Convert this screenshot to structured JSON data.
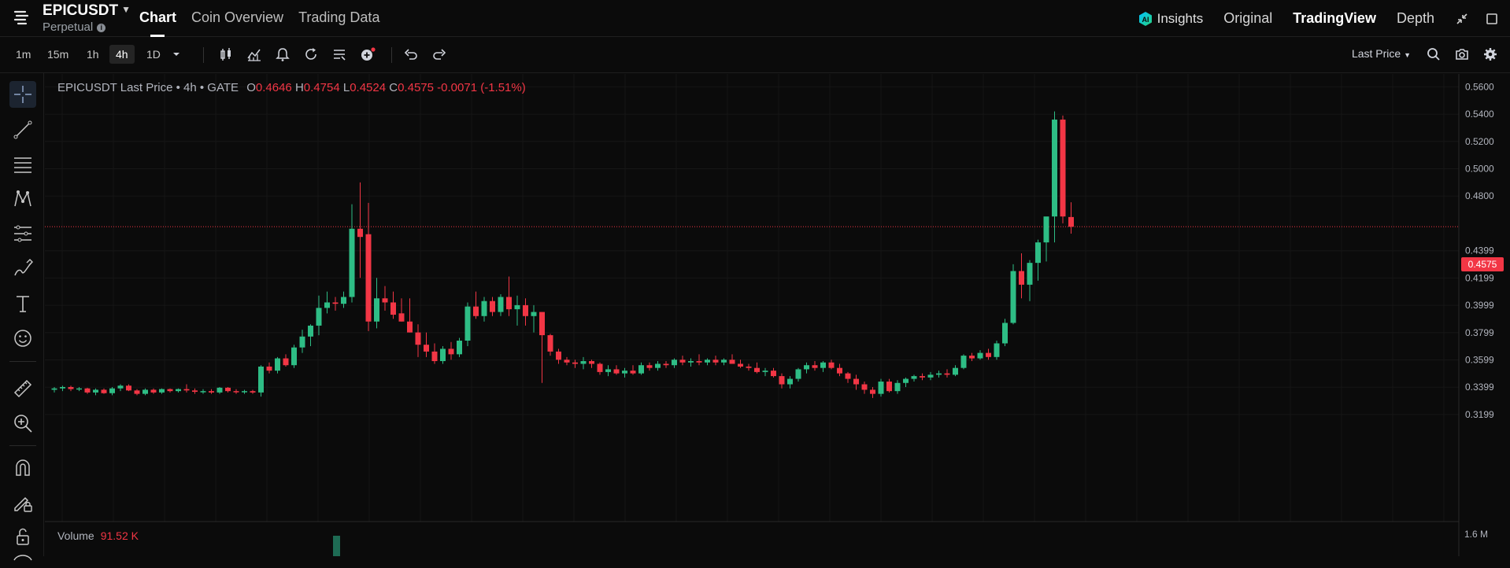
{
  "header": {
    "symbol": "EPICUSDT",
    "contract_type": "Perpetual",
    "tabs": [
      {
        "label": "Chart",
        "active": true
      },
      {
        "label": "Coin Overview",
        "active": false
      },
      {
        "label": "Trading Data",
        "active": false
      }
    ],
    "insights_label": "Insights",
    "views": [
      {
        "label": "Original",
        "active": false
      },
      {
        "label": "TradingView",
        "active": true
      },
      {
        "label": "Depth",
        "active": false
      }
    ]
  },
  "toolbar": {
    "timeframes": [
      {
        "label": "1m",
        "active": false
      },
      {
        "label": "15m",
        "active": false
      },
      {
        "label": "1h",
        "active": false
      },
      {
        "label": "4h",
        "active": true
      },
      {
        "label": "1D",
        "active": false
      }
    ],
    "price_type": "Last Price"
  },
  "legend": {
    "title": "EPICUSDT Last Price • 4h • GATE",
    "open_label": "O",
    "open": "0.4646",
    "high_label": "H",
    "high": "0.4754",
    "low_label": "L",
    "low": "0.4524",
    "close_label": "C",
    "close": "0.4575",
    "change": "-0.0071 (-1.51%)"
  },
  "volume": {
    "label": "Volume",
    "value": "91.52 K",
    "axis_label": "1.6 M"
  },
  "colors": {
    "up": "#26a69a",
    "up_bright": "#2ebd85",
    "down": "#f23645",
    "accent": "#f6465d"
  },
  "chart_data": {
    "type": "candlestick",
    "title": "EPICUSDT Last Price • 4h • GATE",
    "y_ticks": [
      "0.5600",
      "0.5400",
      "0.5200",
      "0.5000",
      "0.4800",
      "0.4399",
      "0.4199",
      "0.3999",
      "0.3799",
      "0.3599",
      "0.3399",
      "0.3199"
    ],
    "ylim": [
      0.31,
      0.566
    ],
    "current_price": 0.4575,
    "current_price_label": "0.4575",
    "last_candle": {
      "open": 0.4646,
      "high": 0.4754,
      "low": 0.4524,
      "close": 0.4575
    },
    "candles_ohlc": [
      [
        0.338,
        0.34,
        0.336,
        0.339
      ],
      [
        0.339,
        0.341,
        0.337,
        0.34
      ],
      [
        0.34,
        0.341,
        0.337,
        0.3385
      ],
      [
        0.3385,
        0.34,
        0.337,
        0.339
      ],
      [
        0.339,
        0.3395,
        0.335,
        0.336
      ],
      [
        0.336,
        0.339,
        0.334,
        0.338
      ],
      [
        0.338,
        0.339,
        0.335,
        0.3355
      ],
      [
        0.3355,
        0.34,
        0.334,
        0.339
      ],
      [
        0.339,
        0.342,
        0.337,
        0.341
      ],
      [
        0.341,
        0.342,
        0.337,
        0.3375
      ],
      [
        0.3375,
        0.3385,
        0.334,
        0.335
      ],
      [
        0.335,
        0.339,
        0.334,
        0.338
      ],
      [
        0.338,
        0.339,
        0.335,
        0.336
      ],
      [
        0.336,
        0.339,
        0.335,
        0.3385
      ],
      [
        0.3385,
        0.339,
        0.336,
        0.337
      ],
      [
        0.337,
        0.339,
        0.336,
        0.3385
      ],
      [
        0.3385,
        0.342,
        0.336,
        0.3375
      ],
      [
        0.3375,
        0.339,
        0.335,
        0.3365
      ],
      [
        0.3365,
        0.3385,
        0.335,
        0.337
      ],
      [
        0.337,
        0.3385,
        0.335,
        0.336
      ],
      [
        0.336,
        0.34,
        0.335,
        0.3395
      ],
      [
        0.3395,
        0.34,
        0.336,
        0.337
      ],
      [
        0.337,
        0.3385,
        0.335,
        0.3365
      ],
      [
        0.3365,
        0.338,
        0.335,
        0.337
      ],
      [
        0.337,
        0.338,
        0.335,
        0.336
      ],
      [
        0.336,
        0.356,
        0.333,
        0.355
      ],
      [
        0.355,
        0.358,
        0.35,
        0.352
      ],
      [
        0.352,
        0.362,
        0.35,
        0.361
      ],
      [
        0.361,
        0.364,
        0.355,
        0.356
      ],
      [
        0.356,
        0.371,
        0.354,
        0.369
      ],
      [
        0.369,
        0.382,
        0.365,
        0.377
      ],
      [
        0.377,
        0.386,
        0.37,
        0.385
      ],
      [
        0.385,
        0.407,
        0.378,
        0.398
      ],
      [
        0.398,
        0.41,
        0.394,
        0.402
      ],
      [
        0.402,
        0.406,
        0.396,
        0.401
      ],
      [
        0.401,
        0.41,
        0.398,
        0.406
      ],
      [
        0.406,
        0.474,
        0.402,
        0.456
      ],
      [
        0.456,
        0.49,
        0.42,
        0.45
      ],
      [
        0.452,
        0.475,
        0.381,
        0.388
      ],
      [
        0.388,
        0.42,
        0.383,
        0.405
      ],
      [
        0.405,
        0.414,
        0.396,
        0.402
      ],
      [
        0.402,
        0.41,
        0.39,
        0.393
      ],
      [
        0.394,
        0.405,
        0.388,
        0.388
      ],
      [
        0.388,
        0.405,
        0.38,
        0.38
      ],
      [
        0.38,
        0.386,
        0.362,
        0.371
      ],
      [
        0.371,
        0.38,
        0.362,
        0.366
      ],
      [
        0.366,
        0.372,
        0.357,
        0.359
      ],
      [
        0.359,
        0.37,
        0.357,
        0.368
      ],
      [
        0.368,
        0.373,
        0.36,
        0.364
      ],
      [
        0.364,
        0.376,
        0.362,
        0.374
      ],
      [
        0.374,
        0.402,
        0.37,
        0.399
      ],
      [
        0.399,
        0.41,
        0.39,
        0.392
      ],
      [
        0.392,
        0.406,
        0.388,
        0.403
      ],
      [
        0.403,
        0.406,
        0.392,
        0.395
      ],
      [
        0.395,
        0.408,
        0.392,
        0.406
      ],
      [
        0.406,
        0.421,
        0.392,
        0.397
      ],
      [
        0.397,
        0.407,
        0.385,
        0.4
      ],
      [
        0.4,
        0.405,
        0.385,
        0.392
      ],
      [
        0.392,
        0.4,
        0.38,
        0.395
      ],
      [
        0.395,
        0.395,
        0.343,
        0.378
      ],
      [
        0.378,
        0.379,
        0.363,
        0.366
      ],
      [
        0.366,
        0.368,
        0.357,
        0.36
      ],
      [
        0.36,
        0.362,
        0.356,
        0.358
      ],
      [
        0.358,
        0.36,
        0.354,
        0.357
      ],
      [
        0.357,
        0.362,
        0.353,
        0.359
      ],
      [
        0.359,
        0.36,
        0.354,
        0.357
      ],
      [
        0.357,
        0.358,
        0.349,
        0.351
      ],
      [
        0.351,
        0.356,
        0.348,
        0.353
      ],
      [
        0.353,
        0.356,
        0.349,
        0.35
      ],
      [
        0.35,
        0.354,
        0.347,
        0.352
      ],
      [
        0.352,
        0.356,
        0.349,
        0.35
      ],
      [
        0.35,
        0.358,
        0.349,
        0.356
      ],
      [
        0.356,
        0.358,
        0.352,
        0.354
      ],
      [
        0.354,
        0.359,
        0.352,
        0.357
      ],
      [
        0.357,
        0.359,
        0.354,
        0.356
      ],
      [
        0.356,
        0.361,
        0.354,
        0.36
      ],
      [
        0.36,
        0.363,
        0.356,
        0.358
      ],
      [
        0.358,
        0.361,
        0.355,
        0.359
      ],
      [
        0.359,
        0.364,
        0.356,
        0.358
      ],
      [
        0.358,
        0.361,
        0.356,
        0.36
      ],
      [
        0.36,
        0.363,
        0.356,
        0.358
      ],
      [
        0.358,
        0.361,
        0.356,
        0.36
      ],
      [
        0.36,
        0.364,
        0.357,
        0.357
      ],
      [
        0.357,
        0.36,
        0.354,
        0.355
      ],
      [
        0.355,
        0.357,
        0.352,
        0.354
      ],
      [
        0.354,
        0.358,
        0.35,
        0.351
      ],
      [
        0.351,
        0.354,
        0.348,
        0.352
      ],
      [
        0.352,
        0.354,
        0.347,
        0.348
      ],
      [
        0.348,
        0.35,
        0.339,
        0.342
      ],
      [
        0.342,
        0.348,
        0.339,
        0.346
      ],
      [
        0.346,
        0.354,
        0.344,
        0.353
      ],
      [
        0.353,
        0.358,
        0.35,
        0.356
      ],
      [
        0.356,
        0.359,
        0.352,
        0.354
      ],
      [
        0.354,
        0.359,
        0.351,
        0.358
      ],
      [
        0.358,
        0.36,
        0.353,
        0.354
      ],
      [
        0.354,
        0.357,
        0.348,
        0.35
      ],
      [
        0.35,
        0.351,
        0.343,
        0.346
      ],
      [
        0.346,
        0.349,
        0.338,
        0.342
      ],
      [
        0.342,
        0.344,
        0.335,
        0.338
      ],
      [
        0.338,
        0.34,
        0.332,
        0.335
      ],
      [
        0.335,
        0.346,
        0.333,
        0.344
      ],
      [
        0.344,
        0.346,
        0.336,
        0.337
      ],
      [
        0.337,
        0.345,
        0.335,
        0.343
      ],
      [
        0.343,
        0.347,
        0.34,
        0.346
      ],
      [
        0.346,
        0.349,
        0.344,
        0.348
      ],
      [
        0.348,
        0.35,
        0.345,
        0.347
      ],
      [
        0.347,
        0.351,
        0.345,
        0.349
      ],
      [
        0.349,
        0.352,
        0.347,
        0.35
      ],
      [
        0.35,
        0.353,
        0.347,
        0.349
      ],
      [
        0.349,
        0.356,
        0.348,
        0.354
      ],
      [
        0.354,
        0.364,
        0.353,
        0.363
      ],
      [
        0.363,
        0.365,
        0.359,
        0.361
      ],
      [
        0.361,
        0.367,
        0.36,
        0.365
      ],
      [
        0.365,
        0.368,
        0.36,
        0.362
      ],
      [
        0.362,
        0.374,
        0.36,
        0.372
      ],
      [
        0.372,
        0.39,
        0.37,
        0.387
      ],
      [
        0.387,
        0.43,
        0.386,
        0.425
      ],
      [
        0.425,
        0.438,
        0.405,
        0.415
      ],
      [
        0.415,
        0.433,
        0.403,
        0.431
      ],
      [
        0.431,
        0.448,
        0.418,
        0.446
      ],
      [
        0.446,
        0.464,
        0.432,
        0.465
      ],
      [
        0.465,
        0.542,
        0.446,
        0.536
      ],
      [
        0.536,
        0.539,
        0.46,
        0.465
      ],
      [
        0.4646,
        0.4754,
        0.4524,
        0.4575
      ]
    ]
  }
}
